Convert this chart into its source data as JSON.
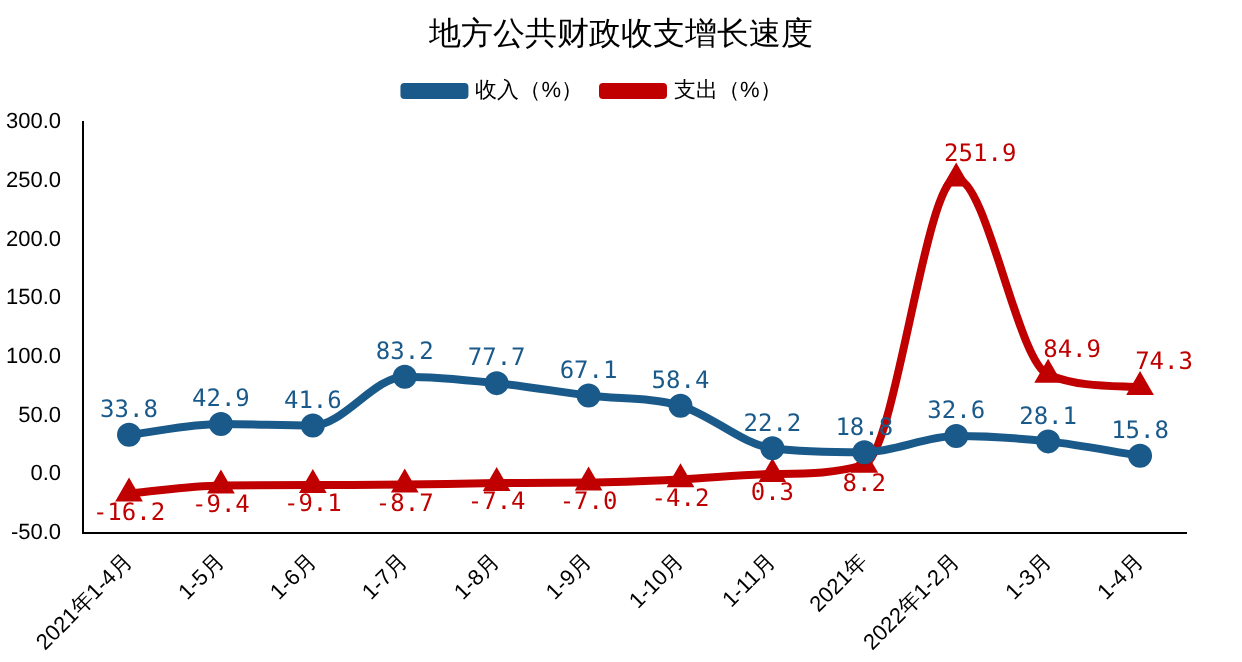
{
  "chart_data": {
    "type": "line",
    "title": "地方公共财政收支增长速度",
    "categories": [
      "2021年1-4月",
      "1-5月",
      "1-6月",
      "1-7月",
      "1-8月",
      "1-9月",
      "1-10月",
      "1-11月",
      "2021年",
      "2022年1-2月",
      "1-3月",
      "1-4月"
    ],
    "series": [
      {
        "name": "收入（%）",
        "color": "#1a5a8a",
        "marker": "circle",
        "values": [
          33.8,
          42.9,
          41.6,
          83.2,
          77.7,
          67.1,
          58.4,
          22.2,
          18.8,
          32.6,
          28.1,
          15.8
        ],
        "value_labels": [
          "33.8",
          "42.9",
          "41.6",
          "83.2",
          "77.7",
          "67.1",
          "58.4",
          "22.2",
          "18.8",
          "32.6",
          "28.1",
          "15.8"
        ]
      },
      {
        "name": "支出（%）",
        "color": "#c00000",
        "marker": "triangle",
        "values": [
          -16.2,
          -9.4,
          -9.1,
          -8.7,
          -7.4,
          -7.0,
          -4.2,
          0.3,
          8.2,
          251.9,
          84.9,
          74.3
        ],
        "value_labels": [
          "-16.2",
          "-9.4",
          "-9.1",
          "-8.7",
          "-7.4",
          "-7.0",
          "-4.2",
          "0.3",
          "8.2",
          "251.9",
          "84.9",
          "74.3"
        ]
      }
    ],
    "ylim": [
      -50,
      300
    ],
    "yticks": [
      {
        "value": -50,
        "label": "-50.0"
      },
      {
        "value": 0,
        "label": "0.0"
      },
      {
        "value": 50,
        "label": "50.0"
      },
      {
        "value": 100,
        "label": "100.0"
      },
      {
        "value": 150,
        "label": "150.0"
      },
      {
        "value": 200,
        "label": "200.0"
      },
      {
        "value": 250,
        "label": "250.0"
      },
      {
        "value": 300,
        "label": "300.0"
      }
    ],
    "grid": false,
    "legend": "top",
    "line_style": "solid"
  }
}
